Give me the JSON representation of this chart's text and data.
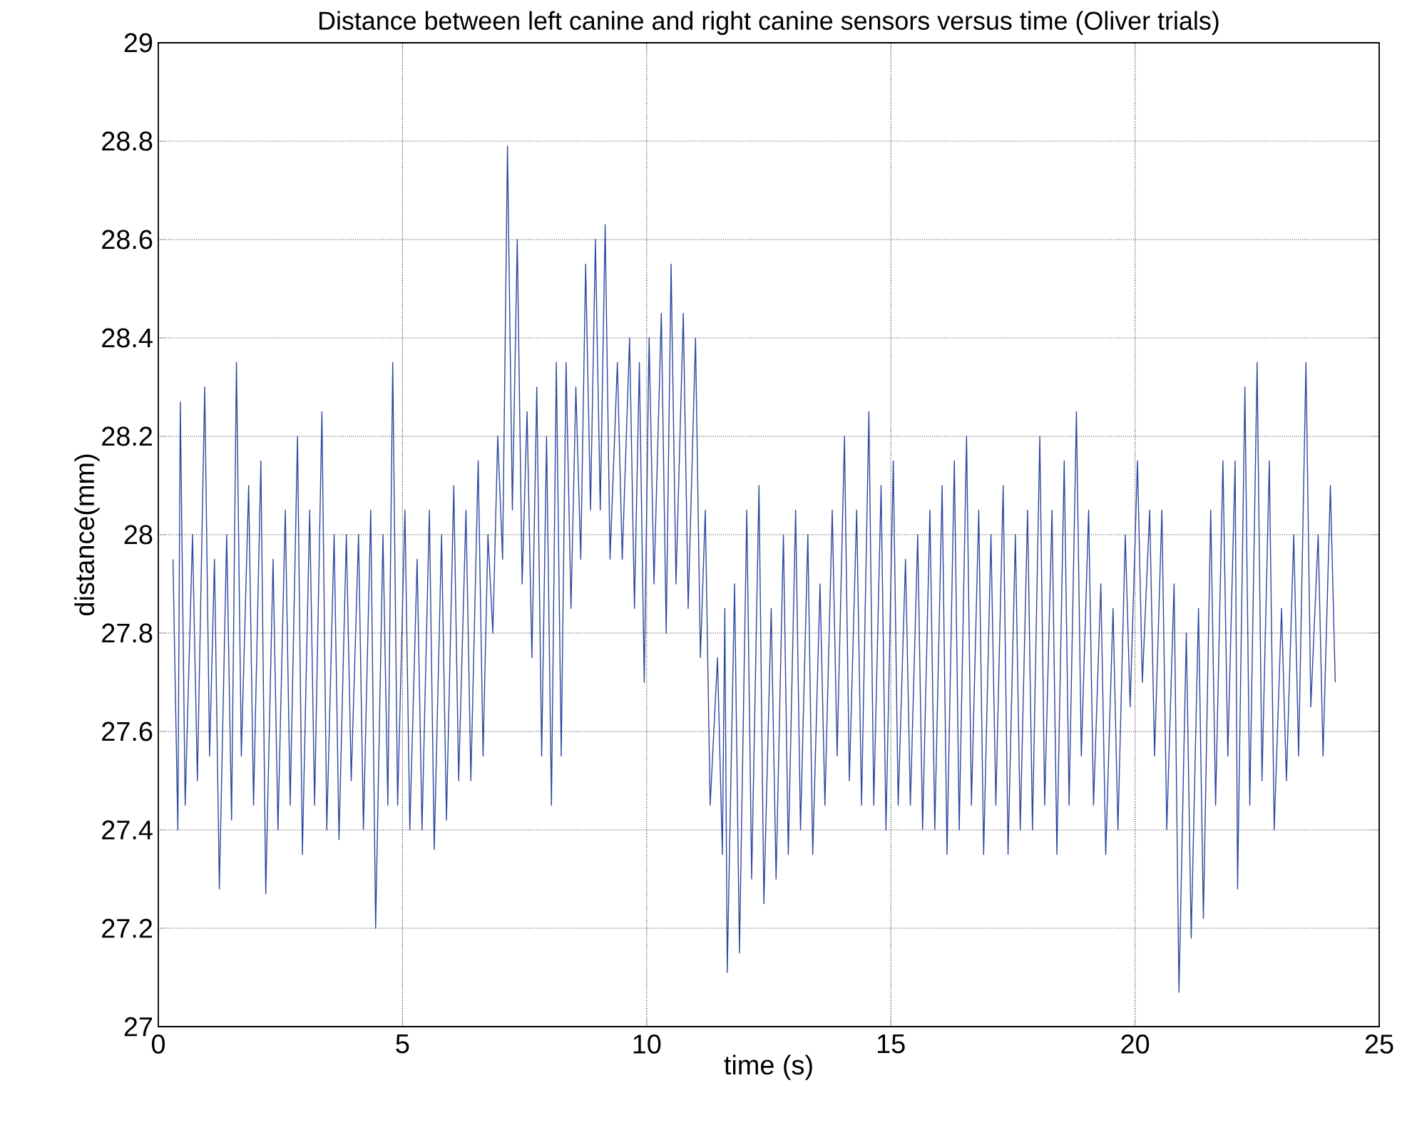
{
  "chart_data": {
    "type": "line",
    "title": "Distance between left canine and right canine sensors versus time (Oliver trials)",
    "xlabel": "time (s)",
    "ylabel": "distance(mm)",
    "color": "#2e47a0",
    "grid": true,
    "xlim": [
      0,
      25
    ],
    "ylim": [
      27,
      29
    ],
    "xticks": [
      0,
      5,
      10,
      15,
      20,
      25
    ],
    "yticks": [
      27,
      27.2,
      27.4,
      27.6,
      27.8,
      28,
      28.2,
      28.4,
      28.6,
      28.8,
      29
    ],
    "x": [
      0.3,
      0.4,
      0.45,
      0.55,
      0.7,
      0.8,
      0.95,
      1.05,
      1.15,
      1.25,
      1.4,
      1.5,
      1.6,
      1.7,
      1.85,
      1.95,
      2.1,
      2.2,
      2.35,
      2.45,
      2.6,
      2.7,
      2.85,
      2.95,
      3.1,
      3.2,
      3.35,
      3.45,
      3.6,
      3.7,
      3.85,
      3.95,
      4.1,
      4.2,
      4.35,
      4.45,
      4.6,
      4.7,
      4.8,
      4.9,
      5.05,
      5.15,
      5.3,
      5.4,
      5.55,
      5.65,
      5.8,
      5.9,
      6.05,
      6.15,
      6.3,
      6.4,
      6.55,
      6.65,
      6.75,
      6.85,
      6.95,
      7.05,
      7.15,
      7.25,
      7.35,
      7.45,
      7.55,
      7.65,
      7.75,
      7.85,
      7.95,
      8.05,
      8.15,
      8.25,
      8.35,
      8.45,
      8.55,
      8.65,
      8.75,
      8.85,
      8.95,
      9.05,
      9.15,
      9.25,
      9.4,
      9.5,
      9.65,
      9.75,
      9.85,
      9.95,
      10.05,
      10.15,
      10.3,
      10.4,
      10.5,
      10.6,
      10.75,
      10.85,
      11.0,
      11.1,
      11.2,
      11.3,
      11.45,
      11.55,
      11.6,
      11.65,
      11.8,
      11.9,
      12.05,
      12.15,
      12.3,
      12.4,
      12.55,
      12.65,
      12.8,
      12.9,
      13.05,
      13.15,
      13.3,
      13.4,
      13.55,
      13.65,
      13.8,
      13.9,
      14.05,
      14.15,
      14.3,
      14.4,
      14.55,
      14.65,
      14.8,
      14.9,
      15.05,
      15.15,
      15.3,
      15.4,
      15.55,
      15.65,
      15.8,
      15.9,
      16.05,
      16.15,
      16.3,
      16.4,
      16.55,
      16.65,
      16.8,
      16.9,
      17.05,
      17.15,
      17.3,
      17.4,
      17.55,
      17.65,
      17.8,
      17.9,
      18.05,
      18.15,
      18.3,
      18.4,
      18.55,
      18.65,
      18.8,
      18.9,
      19.05,
      19.15,
      19.3,
      19.4,
      19.55,
      19.65,
      19.8,
      19.9,
      20.05,
      20.15,
      20.3,
      20.4,
      20.55,
      20.65,
      20.8,
      20.9,
      21.05,
      21.15,
      21.3,
      21.4,
      21.55,
      21.65,
      21.8,
      21.9,
      22.05,
      22.1,
      22.25,
      22.35,
      22.5,
      22.6,
      22.75,
      22.85,
      23.0,
      23.1,
      23.25,
      23.35,
      23.5,
      23.6,
      23.75,
      23.85,
      24.0,
      24.1
    ],
    "values": [
      27.95,
      27.4,
      28.27,
      27.45,
      28.0,
      27.5,
      28.3,
      27.55,
      27.95,
      27.28,
      28.0,
      27.42,
      28.35,
      27.55,
      28.1,
      27.45,
      28.15,
      27.27,
      27.95,
      27.4,
      28.05,
      27.45,
      28.2,
      27.35,
      28.05,
      27.45,
      28.25,
      27.4,
      28.0,
      27.38,
      28.0,
      27.5,
      28.0,
      27.4,
      28.05,
      27.2,
      28.0,
      27.45,
      28.35,
      27.45,
      28.05,
      27.4,
      27.95,
      27.4,
      28.05,
      27.36,
      28.0,
      27.42,
      28.1,
      27.5,
      28.05,
      27.5,
      28.15,
      27.55,
      28.0,
      27.8,
      28.2,
      27.95,
      28.79,
      28.05,
      28.6,
      27.9,
      28.25,
      27.75,
      28.3,
      27.55,
      28.2,
      27.45,
      28.35,
      27.55,
      28.35,
      27.85,
      28.3,
      27.95,
      28.55,
      28.05,
      28.6,
      28.05,
      28.63,
      27.95,
      28.35,
      27.95,
      28.4,
      27.85,
      28.35,
      27.7,
      28.4,
      27.9,
      28.45,
      27.8,
      28.55,
      27.9,
      28.45,
      27.85,
      28.4,
      27.75,
      28.05,
      27.45,
      27.75,
      27.35,
      27.85,
      27.11,
      27.9,
      27.15,
      28.05,
      27.3,
      28.1,
      27.25,
      27.85,
      27.3,
      28.0,
      27.35,
      28.05,
      27.4,
      28.0,
      27.35,
      27.9,
      27.45,
      28.05,
      27.55,
      28.2,
      27.5,
      28.05,
      27.45,
      28.25,
      27.45,
      28.1,
      27.4,
      28.15,
      27.45,
      27.95,
      27.45,
      28.0,
      27.4,
      28.05,
      27.4,
      28.1,
      27.35,
      28.15,
      27.4,
      28.2,
      27.45,
      28.05,
      27.35,
      28.0,
      27.45,
      28.1,
      27.35,
      28.0,
      27.4,
      28.05,
      27.4,
      28.2,
      27.45,
      28.05,
      27.35,
      28.15,
      27.45,
      28.25,
      27.55,
      28.05,
      27.45,
      27.9,
      27.35,
      27.85,
      27.4,
      28.0,
      27.65,
      28.15,
      27.7,
      28.05,
      27.55,
      28.05,
      27.4,
      27.9,
      27.07,
      27.8,
      27.18,
      27.85,
      27.22,
      28.05,
      27.45,
      28.15,
      27.55,
      28.15,
      27.28,
      28.3,
      27.45,
      28.35,
      27.5,
      28.15,
      27.4,
      27.85,
      27.5,
      28.0,
      27.55,
      28.35,
      27.65,
      28.0,
      27.55,
      28.1,
      27.7
    ]
  }
}
